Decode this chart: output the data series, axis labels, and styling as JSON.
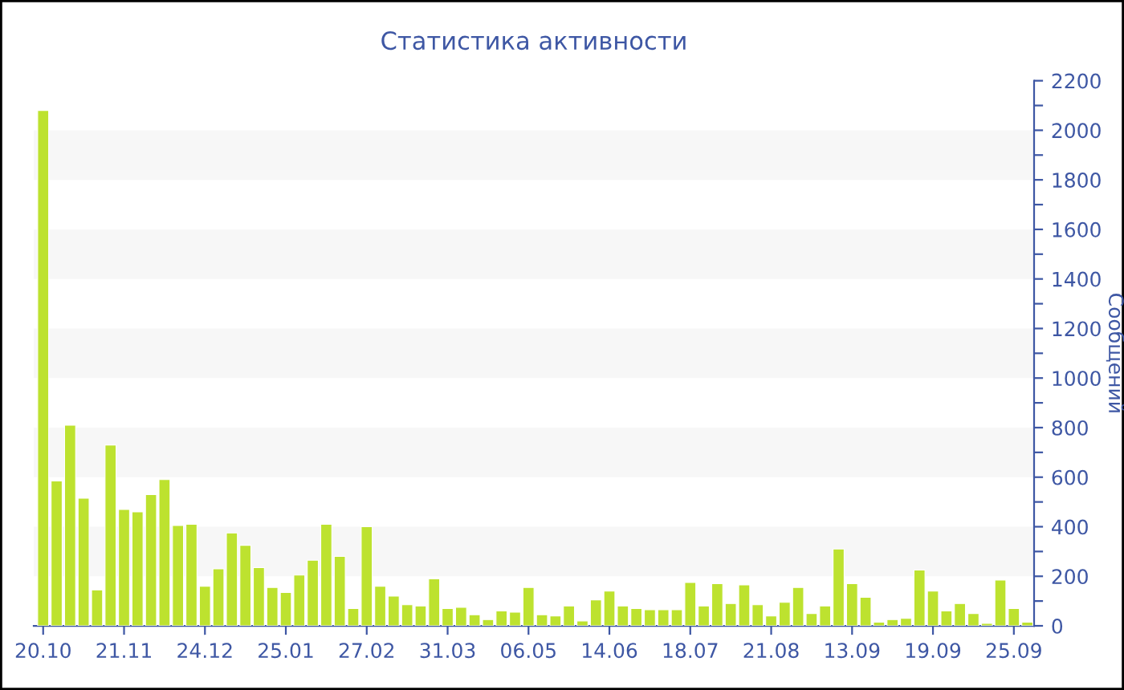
{
  "chart_data": {
    "type": "bar",
    "title": "Статистика активности",
    "ylabel": "Сообщений",
    "color": "#bde22f",
    "categories": [
      "20.10",
      null,
      null,
      null,
      null,
      null,
      "21.11",
      null,
      null,
      null,
      null,
      null,
      "24.12",
      null,
      null,
      null,
      null,
      null,
      "25.01",
      null,
      null,
      null,
      null,
      null,
      "27.02",
      null,
      null,
      null,
      null,
      null,
      "31.03",
      null,
      null,
      null,
      null,
      null,
      "06.05",
      null,
      null,
      null,
      null,
      null,
      "14.06",
      null,
      null,
      null,
      null,
      null,
      "18.07",
      null,
      null,
      null,
      null,
      null,
      "21.08",
      null,
      null,
      null,
      null,
      null,
      "13.09",
      null,
      null,
      null,
      null,
      null,
      "19.09",
      null,
      null,
      null,
      null,
      null,
      "25.09",
      null
    ],
    "values": [
      2080,
      585,
      810,
      515,
      145,
      730,
      470,
      460,
      530,
      590,
      405,
      410,
      160,
      230,
      375,
      325,
      235,
      155,
      135,
      205,
      265,
      410,
      280,
      70,
      400,
      160,
      120,
      85,
      80,
      190,
      70,
      75,
      45,
      25,
      60,
      55,
      155,
      45,
      40,
      80,
      20,
      105,
      140,
      80,
      70,
      65,
      65,
      65,
      175,
      80,
      170,
      90,
      165,
      85,
      40,
      95,
      155,
      50,
      80,
      310,
      170,
      115,
      15,
      25,
      30,
      225,
      140,
      60,
      90,
      50,
      10,
      185,
      70,
      15
    ],
    "ylim": [
      0,
      2200
    ],
    "yticks": [
      0,
      {
        "value": 100,
        "label": null
      },
      200,
      {
        "value": 300,
        "label": null
      },
      400,
      {
        "value": 500,
        "label": null
      },
      600,
      {
        "value": 700,
        "label": null
      },
      800,
      {
        "value": 900,
        "label": null
      },
      1000,
      {
        "value": 1100,
        "label": null
      },
      1200,
      {
        "value": 1300,
        "label": null
      },
      1400,
      {
        "value": 1500,
        "label": null
      },
      1600,
      {
        "value": 1700,
        "label": null
      },
      1800,
      {
        "value": 1900,
        "label": null
      },
      2000,
      {
        "value": 2100,
        "label": null
      },
      2200
    ],
    "bands": [
      {
        "axis": "y",
        "from": 200,
        "to": 400,
        "color": "#f7f7f7"
      },
      {
        "axis": "y",
        "from": 600,
        "to": 800,
        "color": "#f7f7f7"
      },
      {
        "axis": "y",
        "from": 1000,
        "to": 1200,
        "color": "#f7f7f7"
      },
      {
        "axis": "y",
        "from": 1400,
        "to": 1600,
        "color": "#f7f7f7"
      },
      {
        "axis": "y",
        "from": 1800,
        "to": 2000,
        "color": "#f7f7f7"
      }
    ]
  }
}
